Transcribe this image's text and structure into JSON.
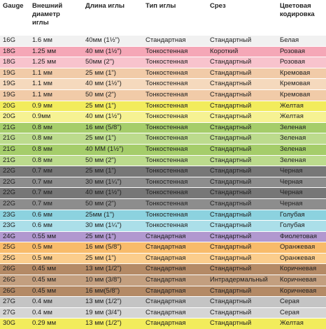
{
  "table": {
    "header": [
      "Gauge",
      "Внешний диаметр иглы",
      "Длина иглы",
      "Тип иглы",
      "Срез",
      "Цветовая кодировка"
    ],
    "rows": [
      [
        "16G",
        "1.6 мм",
        "40мм (1½\")",
        "Стандартная",
        "Стандартный",
        "Белая"
      ],
      [
        "18G",
        "1.25 мм",
        "40 мм (1½\")",
        "Тонкостенная",
        "Короткий",
        "Розовая"
      ],
      [
        "18G",
        "1.25 мм",
        "50мм (2\")",
        "Тонкостенная",
        "Стандартный",
        "Розовая"
      ],
      [
        "19G",
        "1.1 мм",
        "25 мм (1\")",
        "Тонкостенная",
        "Стандартный",
        "Кремовая"
      ],
      [
        "19G",
        "1.1 мм",
        "40 мм (1½\")",
        "Тонкостенная",
        "Стандартный",
        "Кремовая"
      ],
      [
        "19G",
        "1.1 мм",
        "50 мм (2\")",
        "Тонкостенная",
        "Стандартный",
        "Кремовая"
      ],
      [
        "20G",
        "0.9 мм",
        "25 мм (1\")",
        "Тонкостенная",
        "Стандартный",
        "Желтая"
      ],
      [
        "20G",
        "0.9мм",
        "40 мм (1½\")",
        "Тонкостенная",
        "Стандартный",
        "Желтая"
      ],
      [
        "21G",
        "0.8 мм",
        "16 мм (5/8\")",
        "Тонкостенная",
        "Стандартный",
        "Зеленая"
      ],
      [
        "21G",
        "0.8 мм",
        "25 мм (1\")",
        "Тонкостенная",
        "Стандартный",
        "Зеленая"
      ],
      [
        "21G",
        "0.8 мм",
        "40 ММ (1½\")",
        "Тонкостенная",
        "Стандартный",
        "Зеленая"
      ],
      [
        "21G",
        "0.8 мм",
        "50 мм (2\")",
        "Тонкостенная",
        "Стандартный",
        "Зеленая"
      ],
      [
        "22G",
        "0.7 мм",
        "25 мм (1\")",
        "Тонкостенная",
        "Стандартный",
        "Черная"
      ],
      [
        "22G",
        "0.7 мм",
        "30 мм (1¼\")",
        "Тонкостенная",
        "Стандартный",
        "Черная"
      ],
      [
        "22G",
        "0.7 мм",
        "40 мм (1½\")",
        "Тонкостенная",
        "Стандартный",
        "Черная"
      ],
      [
        "22G",
        "0.7 мм",
        "50 мм (2\")",
        "Тонкостенная",
        "Стандартный",
        "Черная"
      ],
      [
        "23G",
        "0.6 мм",
        "25мм (1\")",
        "Тонкостенная",
        "Стандартный",
        "Голубая"
      ],
      [
        "23G",
        "0.6 мм",
        "30 мм (1¼\")",
        "Тонкостенная",
        "Стандартный",
        "Голубая"
      ],
      [
        "24G",
        "0.55 мм",
        "25 мм (1\")",
        "Стандартная",
        "Стандартный",
        "Фиолетовая"
      ],
      [
        "25G",
        "0.5 мм",
        "16 мм (5/8\")",
        "Стандартная",
        "Стандартный",
        "Оранжевая"
      ],
      [
        "25G",
        "0.5 мм",
        "25 мм (1\")",
        "Стандартная",
        "Стандартный",
        "Оранжевая"
      ],
      [
        "26G",
        "0.45 мм",
        "13 мм (1/2\")",
        "Стандартная",
        "Стандартный",
        "Коричневая"
      ],
      [
        "26G",
        "0.45 мм",
        "10 мм (3/8\")",
        "Стандартная",
        "Интрадермальный",
        "Коричневая"
      ],
      [
        "26G",
        "0.45 мм",
        "16 мм(5/8\")",
        "Стандартная",
        "Стандартный",
        "Коричневая"
      ],
      [
        "27G",
        "0.4 мм",
        "13 мм (1/2\")",
        "Стандартная",
        "Стандартный",
        "Серая"
      ],
      [
        "27G",
        "0.4 мм",
        "19 мм (3/4\")",
        "Стандартная",
        "Стандартный",
        "Серая"
      ],
      [
        "30G",
        "0.29 мм",
        "13 мм (1/2\")",
        "Стандартная",
        "Стандартный",
        "Желтая"
      ]
    ]
  }
}
